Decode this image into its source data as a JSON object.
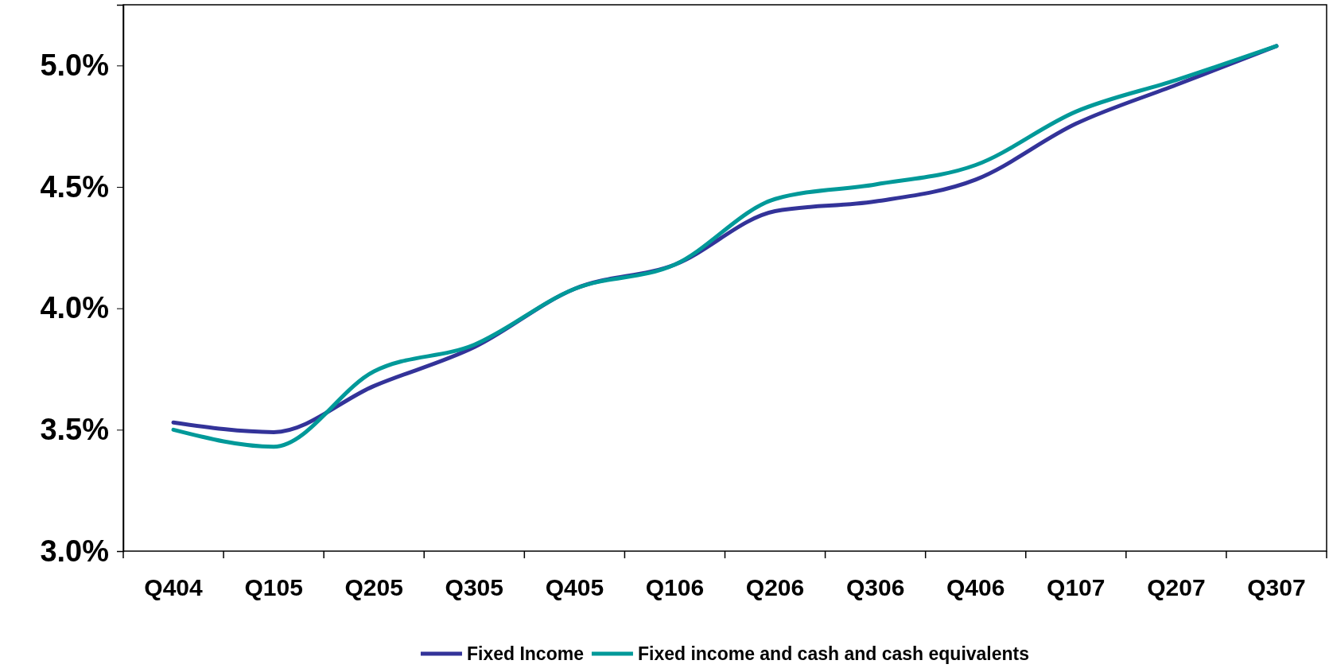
{
  "chart_data": {
    "type": "line",
    "categories": [
      "Q404",
      "Q105",
      "Q205",
      "Q305",
      "Q405",
      "Q106",
      "Q206",
      "Q306",
      "Q406",
      "Q107",
      "Q207",
      "Q307"
    ],
    "series": [
      {
        "name": "Fixed Income",
        "color": "#333399",
        "values": [
          3.53,
          3.49,
          3.68,
          3.84,
          4.08,
          4.18,
          4.4,
          4.44,
          4.53,
          4.76,
          4.92,
          5.08
        ]
      },
      {
        "name": "Fixed income and cash and cash equivalents",
        "color": "#009999",
        "values": [
          3.5,
          3.43,
          3.74,
          3.85,
          4.08,
          4.18,
          4.45,
          4.51,
          4.59,
          4.81,
          4.94,
          5.08
        ]
      }
    ],
    "ylim": [
      3.0,
      5.25
    ],
    "yticks": [
      {
        "value": 3.0,
        "label": "3.0%"
      },
      {
        "value": 3.5,
        "label": "3.5%"
      },
      {
        "value": 4.0,
        "label": "4.0%"
      },
      {
        "value": 4.5,
        "label": "4.5%"
      },
      {
        "value": 5.0,
        "label": "5.0%"
      }
    ],
    "grid": false,
    "legend": "bottom",
    "marker": "none",
    "line_style": "solid"
  }
}
